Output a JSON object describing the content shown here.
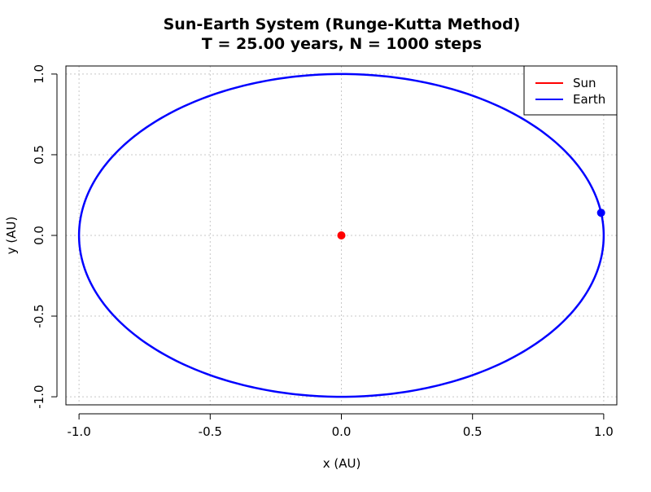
{
  "chart_data": {
    "type": "line",
    "title": "Sun-Earth System (Runge-Kutta Method)",
    "subtitle": "T = 25.00 years, N = 1000 steps",
    "xlabel": "x (AU)",
    "ylabel": "y (AU)",
    "xlim": [
      -1.05,
      1.05
    ],
    "ylim": [
      -1.05,
      1.05
    ],
    "x_ticks": [
      -1.0,
      -0.5,
      0.0,
      0.5,
      1.0
    ],
    "y_ticks": [
      -1.0,
      -0.5,
      0.0,
      0.5,
      1.0
    ],
    "x_tick_labels": [
      "-1.0",
      "-0.5",
      "0.0",
      "0.5",
      "1.0"
    ],
    "y_tick_labels": [
      "-1.0",
      "-0.5",
      "0.0",
      "0.5",
      "1.0"
    ],
    "grid": true,
    "legend_position": "top-right",
    "series": [
      {
        "name": "Sun",
        "color": "#ff0000",
        "x": [
          0.0
        ],
        "y": [
          0.0
        ],
        "current_position": {
          "x": 0.0,
          "y": 0.0
        }
      },
      {
        "name": "Earth",
        "color": "#0000ff",
        "orbit": {
          "center_x": 0.0,
          "center_y": 0.0,
          "radius_x": 1.0,
          "radius_y": 1.0
        },
        "current_position": {
          "x": 0.99,
          "y": 0.14
        }
      }
    ]
  }
}
